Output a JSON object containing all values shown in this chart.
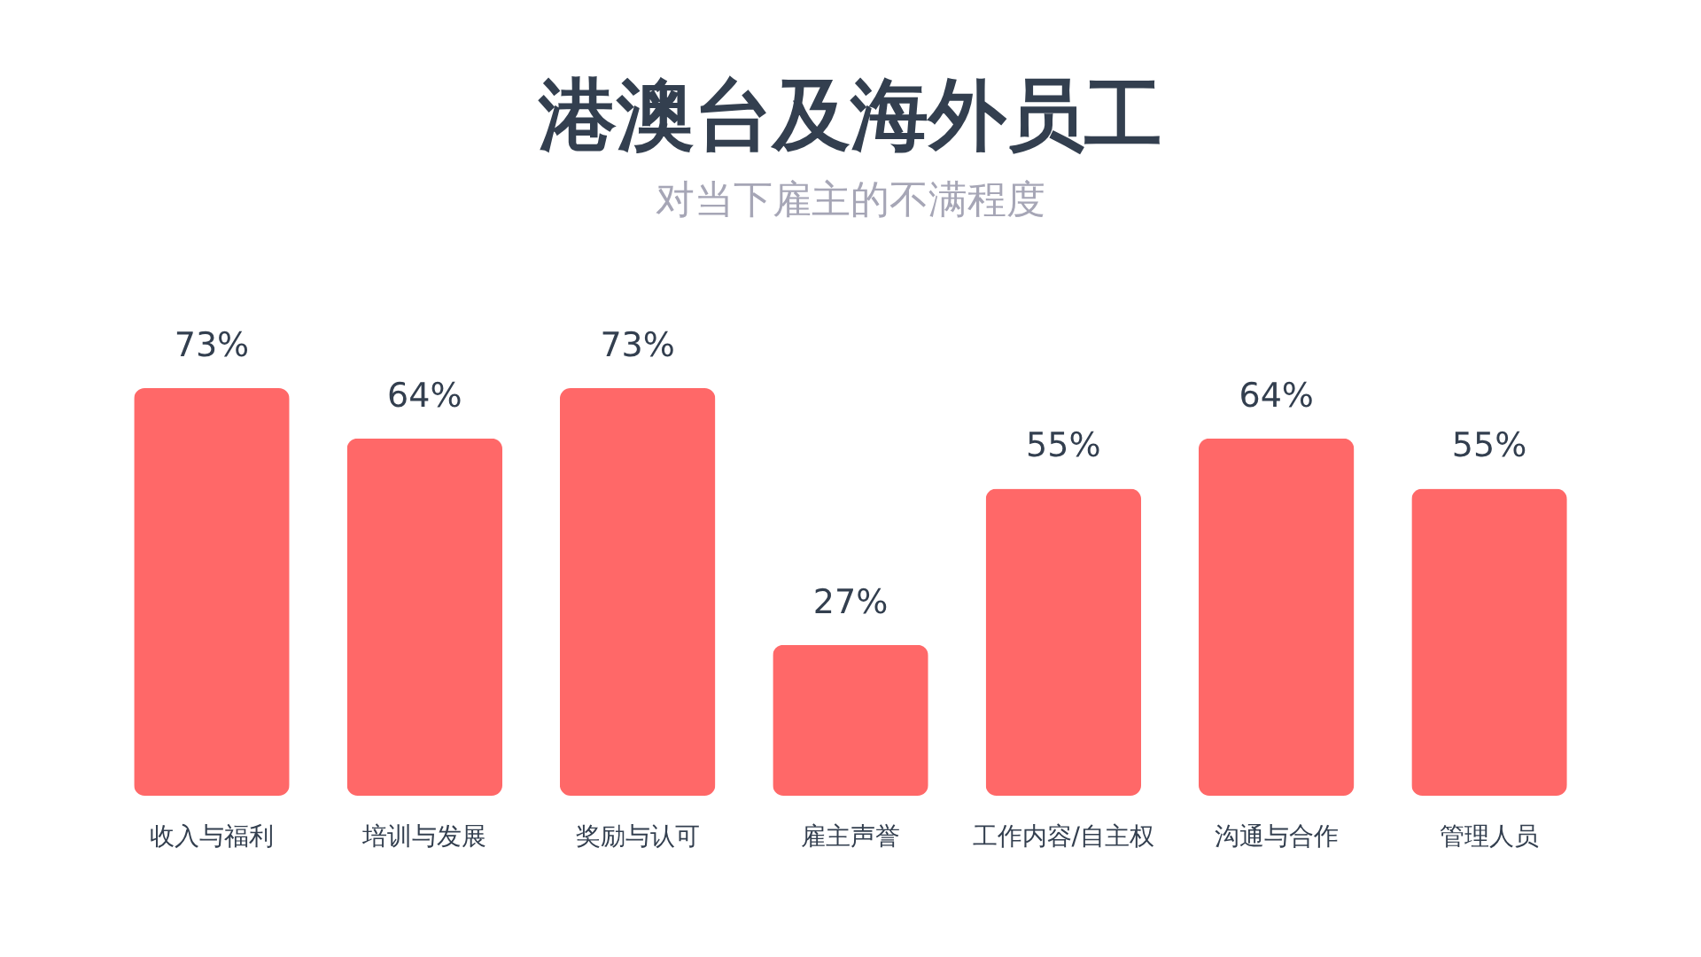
{
  "chart_data": {
    "type": "bar",
    "title": "港澳台及海外员工",
    "subtitle": "对当下雇主的不满程度",
    "categories": [
      "收入与福利",
      "培训与发展",
      "奖励与认可",
      "雇主声誉",
      "工作内容/自主权",
      "沟通与合作",
      "管理人员"
    ],
    "values": [
      73,
      64,
      73,
      27,
      55,
      64,
      55
    ],
    "value_labels": [
      "73%",
      "64%",
      "73%",
      "27%",
      "55%",
      "64%",
      "55%"
    ],
    "color": "#ff6868",
    "grid": false
  }
}
